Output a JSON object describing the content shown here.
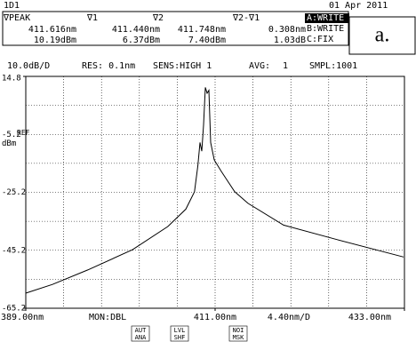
{
  "header": {
    "id": "1D1",
    "date": "01 Apr 2011",
    "annotation": "a."
  },
  "markers": {
    "headers": [
      "∇PEAK",
      "∇1",
      "∇2",
      "∇2-∇1"
    ],
    "wavelengths": [
      "411.616nm",
      "411.440nm",
      "411.748nm",
      "0.308nm"
    ],
    "levels": [
      "10.19dBm",
      "6.37dBm",
      "7.40dBm",
      "1.03dB"
    ]
  },
  "traces": [
    "A:WRITE",
    "B:WRITE",
    "C:FIX"
  ],
  "settings": [
    "10.0dB/D",
    "RES: 0.1nm",
    "SENS:HIGH 1",
    "AVG:",
    "1",
    "SMPL:1001"
  ],
  "chart_data": {
    "type": "line",
    "y_ref_label": "REF",
    "y_unit": "dBm",
    "x_scale_label": "4.40nm/D",
    "monitor": "MON:DBL",
    "x": [
      389.0,
      392.1,
      396.2,
      401.4,
      405.5,
      407.6,
      408.6,
      409.0,
      409.24,
      409.45,
      409.66,
      409.86,
      410.07,
      410.28,
      410.48,
      410.9,
      411.72,
      413.27,
      414.82,
      418.95,
      425.15,
      432.9
    ],
    "values": [
      -60,
      -57,
      -52,
      -45,
      -37,
      -31,
      -25,
      -16,
      -8,
      -11,
      -2,
      11,
      9,
      10,
      -8,
      -14,
      -18,
      -25,
      -29,
      -36.5,
      -41.5,
      -47.5
    ],
    "color": "#000000",
    "xlim": [
      389,
      433
    ],
    "ylim": [
      -65.2,
      14.8
    ],
    "xticks": [
      {
        "value": 389,
        "label": "389.00nm"
      },
      {
        "value": 411,
        "label": "411.00nm"
      },
      {
        "value": 433,
        "label": "433.00nm"
      }
    ],
    "yticks": [
      14.8,
      -5.2,
      -25.2,
      -45.2,
      -65.2
    ],
    "grid": true
  },
  "buttons": [
    [
      "AUT",
      "ANA"
    ],
    [
      "LVL",
      "SHF"
    ],
    [
      "NOI",
      "MSK"
    ]
  ]
}
